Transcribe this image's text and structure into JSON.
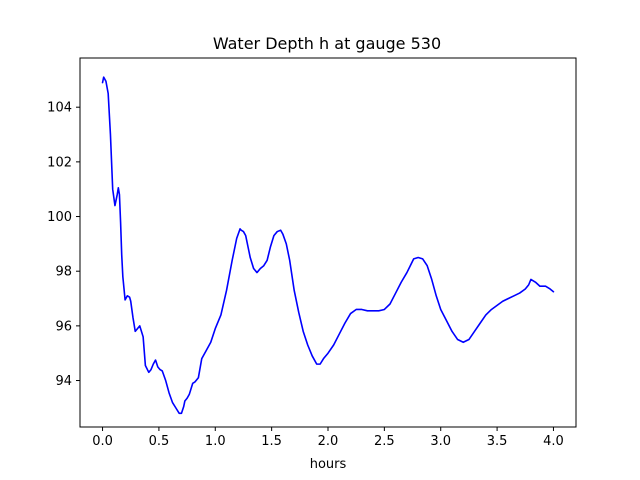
{
  "chart_data": {
    "type": "line",
    "title": "Water Depth h at gauge 530",
    "xlabel": "hours",
    "ylabel": "",
    "xlim": [
      -0.2,
      4.2
    ],
    "ylim": [
      92.3,
      105.8
    ],
    "xticks": [
      0.0,
      0.5,
      1.0,
      1.5,
      2.0,
      2.5,
      3.0,
      3.5,
      4.0
    ],
    "xtick_labels": [
      "0.0",
      "0.5",
      "1.0",
      "1.5",
      "2.0",
      "2.5",
      "3.0",
      "3.5",
      "4.0"
    ],
    "yticks": [
      94,
      96,
      98,
      100,
      102,
      104
    ],
    "ytick_labels": [
      "94",
      "96",
      "98",
      "100",
      "102",
      "104"
    ],
    "grid": false,
    "line_color": "#0000ff",
    "series": [
      {
        "x": [
          0.0,
          0.01,
          0.03,
          0.05,
          0.07,
          0.09,
          0.11,
          0.13,
          0.14,
          0.15,
          0.16,
          0.17,
          0.18,
          0.2,
          0.22,
          0.24,
          0.25,
          0.27,
          0.29,
          0.31,
          0.33,
          0.36,
          0.38,
          0.41,
          0.43,
          0.45,
          0.47,
          0.49,
          0.51,
          0.53,
          0.56,
          0.59,
          0.62,
          0.65,
          0.68,
          0.7,
          0.72,
          0.73,
          0.75,
          0.77,
          0.8,
          0.82,
          0.85,
          0.88,
          0.92,
          0.96,
          1.0,
          1.05,
          1.1,
          1.15,
          1.19,
          1.22,
          1.23,
          1.25,
          1.27,
          1.29,
          1.31,
          1.34,
          1.37,
          1.4,
          1.43,
          1.46,
          1.49,
          1.52,
          1.55,
          1.58,
          1.6,
          1.63,
          1.66,
          1.7,
          1.74,
          1.78,
          1.82,
          1.86,
          1.9,
          1.93,
          1.96,
          2.0,
          2.05,
          2.1,
          2.15,
          2.2,
          2.25,
          2.3,
          2.35,
          2.4,
          2.45,
          2.5,
          2.55,
          2.6,
          2.65,
          2.7,
          2.73,
          2.76,
          2.8,
          2.84,
          2.88,
          2.92,
          2.96,
          3.0,
          3.05,
          3.1,
          3.15,
          3.2,
          3.25,
          3.3,
          3.35,
          3.4,
          3.45,
          3.5,
          3.55,
          3.6,
          3.65,
          3.7,
          3.75,
          3.78,
          3.8,
          3.84,
          3.88,
          3.93,
          3.97,
          4.0
        ],
        "y": [
          104.9,
          105.1,
          104.95,
          104.5,
          103.0,
          101.0,
          100.4,
          100.8,
          101.05,
          100.8,
          99.8,
          98.6,
          97.8,
          96.95,
          97.1,
          97.05,
          96.9,
          96.3,
          95.8,
          95.9,
          96.0,
          95.6,
          94.55,
          94.3,
          94.4,
          94.6,
          94.75,
          94.5,
          94.4,
          94.35,
          94.0,
          93.55,
          93.2,
          93.0,
          92.8,
          92.8,
          93.05,
          93.25,
          93.35,
          93.5,
          93.9,
          93.95,
          94.1,
          94.8,
          95.1,
          95.4,
          95.9,
          96.4,
          97.3,
          98.4,
          99.2,
          99.55,
          99.5,
          99.45,
          99.3,
          98.9,
          98.5,
          98.1,
          97.95,
          98.1,
          98.2,
          98.4,
          98.9,
          99.3,
          99.45,
          99.5,
          99.35,
          99.0,
          98.4,
          97.3,
          96.5,
          95.8,
          95.3,
          94.9,
          94.6,
          94.6,
          94.8,
          95.0,
          95.3,
          95.7,
          96.1,
          96.45,
          96.6,
          96.6,
          96.55,
          96.55,
          96.55,
          96.6,
          96.8,
          97.2,
          97.6,
          97.95,
          98.2,
          98.45,
          98.5,
          98.45,
          98.2,
          97.7,
          97.1,
          96.6,
          96.2,
          95.8,
          95.5,
          95.4,
          95.5,
          95.8,
          96.1,
          96.4,
          96.6,
          96.75,
          96.9,
          97.0,
          97.1,
          97.2,
          97.35,
          97.5,
          97.7,
          97.6,
          97.45,
          97.45,
          97.35,
          97.25
        ]
      }
    ]
  }
}
